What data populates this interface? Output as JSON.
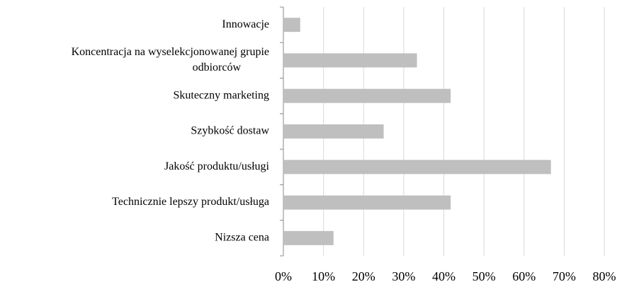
{
  "chart_data": {
    "type": "barh",
    "categories": [
      "Innowacje",
      [
        "Koncentracja na wyselekcjonowanej grupie",
        "odbiorców"
      ],
      "Skuteczny marketing",
      "Szybkość dostaw",
      "Jakość produktu/usługi",
      "Technicznie lepszy produkt/usługa",
      "Nizsza cena"
    ],
    "values": [
      4.2,
      33.3,
      41.7,
      25,
      66.7,
      41.7,
      12.5
    ],
    "color": "#bfbfbf",
    "xlim": [
      0,
      80
    ],
    "xticks": [
      {
        "value": 0,
        "label": "0%"
      },
      {
        "value": 10,
        "label": "10%"
      },
      {
        "value": 20,
        "label": "20%"
      },
      {
        "value": 30,
        "label": "30%"
      },
      {
        "value": 40,
        "label": "40%"
      },
      {
        "value": 50,
        "label": "50%"
      },
      {
        "value": 60,
        "label": "60%"
      },
      {
        "value": 70,
        "label": "70%"
      },
      {
        "value": 80,
        "label": "80%"
      }
    ],
    "grid": true
  }
}
